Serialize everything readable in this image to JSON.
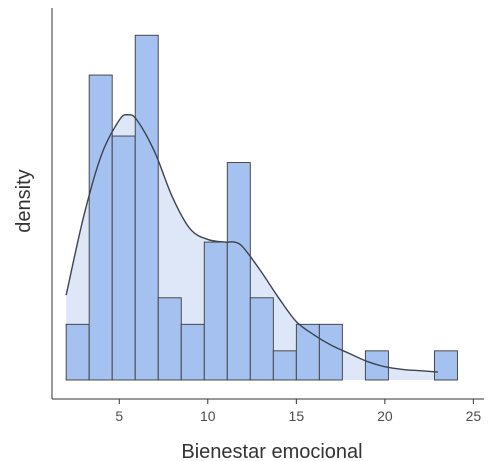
{
  "chart_data": {
    "type": "histogram",
    "xlabel": "Bienestar emocional",
    "ylabel": "density",
    "xlim": [
      1.2,
      25.6
    ],
    "x_ticks": [
      5,
      10,
      15,
      20,
      25
    ],
    "y_tick_labels_shown": false,
    "ylim": [
      0,
      0.135
    ],
    "bin_width": 1.3,
    "bin_start": 2.0,
    "bins": [
      {
        "start": 2.0,
        "end": 3.3,
        "density": 0.021
      },
      {
        "start": 3.3,
        "end": 4.6,
        "density": 0.115
      },
      {
        "start": 4.6,
        "end": 5.9,
        "density": 0.092
      },
      {
        "start": 5.9,
        "end": 7.2,
        "density": 0.13
      },
      {
        "start": 7.2,
        "end": 8.5,
        "density": 0.031
      },
      {
        "start": 8.5,
        "end": 9.8,
        "density": 0.021
      },
      {
        "start": 9.8,
        "end": 11.1,
        "density": 0.052
      },
      {
        "start": 11.1,
        "end": 12.4,
        "density": 0.082
      },
      {
        "start": 12.4,
        "end": 13.7,
        "density": 0.031
      },
      {
        "start": 13.7,
        "end": 15.0,
        "density": 0.011
      },
      {
        "start": 15.0,
        "end": 16.3,
        "density": 0.021
      },
      {
        "start": 16.3,
        "end": 17.6,
        "density": 0.021
      },
      {
        "start": 17.6,
        "end": 18.9,
        "density": 0.0
      },
      {
        "start": 18.9,
        "end": 20.2,
        "density": 0.011
      },
      {
        "start": 20.2,
        "end": 21.5,
        "density": 0.0
      },
      {
        "start": 21.5,
        "end": 22.8,
        "density": 0.0
      },
      {
        "start": 22.8,
        "end": 24.1,
        "density": 0.011
      }
    ],
    "density_curve": {
      "x": [
        2,
        3,
        4,
        5,
        5.5,
        6,
        7,
        8,
        9,
        10,
        11,
        11.5,
        12,
        13,
        14,
        15,
        16,
        17,
        18,
        19,
        20,
        21,
        22,
        23
      ],
      "y": [
        0.032,
        0.062,
        0.085,
        0.098,
        0.1,
        0.098,
        0.086,
        0.069,
        0.057,
        0.053,
        0.052,
        0.052,
        0.05,
        0.041,
        0.031,
        0.022,
        0.017,
        0.013,
        0.01,
        0.007,
        0.005,
        0.004,
        0.0035,
        0.003
      ]
    },
    "grid": false,
    "legend": "none",
    "colors": {
      "bar_fill": "#a4c1ef",
      "bar_stroke": "#3a3a3a",
      "density_fill": "#dde7f7",
      "density_line": "#3d4450",
      "axis": "#333333"
    }
  }
}
